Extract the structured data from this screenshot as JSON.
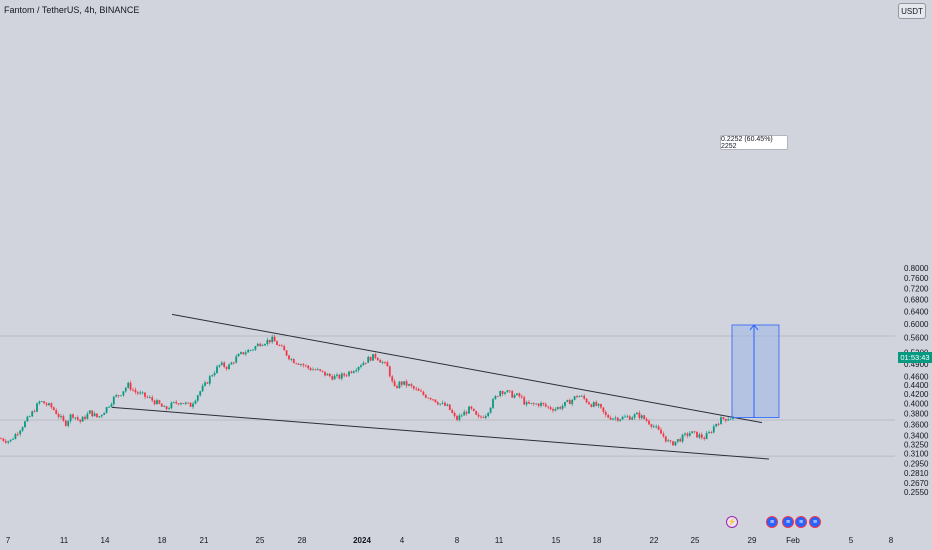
{
  "header": {
    "title": "Fantom / TetherUS, 4h, BINANCE",
    "currency": "USDT"
  },
  "last_price_tag": {
    "time": "01:53:43",
    "price": 0.37,
    "color": "#089981"
  },
  "measure": {
    "label": "0.2252 (60.45%) 2252",
    "from_price": 0.3725,
    "to_price": 0.5977
  },
  "colors": {
    "up": "#089981",
    "down": "#f23645",
    "line": "#2a2e39",
    "measure_fill": "#9db4e6",
    "measure_line": "#2962ff"
  },
  "events": [
    {
      "icon": "lightning-icon"
    },
    {
      "icon": "us-flag-icon"
    },
    {
      "icon": "us-flag-icon"
    },
    {
      "icon": "us-flag-icon"
    },
    {
      "icon": "us-flag-icon"
    }
  ],
  "chart_data": {
    "type": "candlestick",
    "title": "Fantom / TetherUS, 4h, BINANCE",
    "y_scale": "log",
    "ylim": [
      0.245,
      0.82
    ],
    "y_ticks": [
      "0.8000",
      "0.7600",
      "0.7200",
      "0.6800",
      "0.6400",
      "0.6000",
      "0.5600",
      "0.5200",
      "0.4900",
      "0.4600",
      "0.4400",
      "0.4200",
      "0.4000",
      "0.3800",
      "0.3600",
      "0.3400",
      "0.3250",
      "0.3100",
      "0.2950",
      "0.2810",
      "0.2670",
      "0.2550"
    ],
    "x_ticks": [
      "7",
      "11",
      "14",
      "18",
      "21",
      "25",
      "28",
      "2024",
      "4",
      "8",
      "11",
      "15",
      "18",
      "22",
      "25",
      "29",
      "Feb",
      "5",
      "8"
    ],
    "horizontal_lines": [
      0.565,
      0.368,
      0.306
    ],
    "close_path": [
      [
        0,
        0.335
      ],
      [
        10,
        0.33
      ],
      [
        20,
        0.352
      ],
      [
        30,
        0.375
      ],
      [
        40,
        0.405
      ],
      [
        45,
        0.4
      ],
      [
        52,
        0.392
      ],
      [
        58,
        0.378
      ],
      [
        65,
        0.36
      ],
      [
        72,
        0.38
      ],
      [
        80,
        0.365
      ],
      [
        90,
        0.383
      ],
      [
        98,
        0.372
      ],
      [
        106,
        0.39
      ],
      [
        114,
        0.412
      ],
      [
        120,
        0.42
      ],
      [
        128,
        0.44
      ],
      [
        135,
        0.425
      ],
      [
        142,
        0.418
      ],
      [
        150,
        0.41
      ],
      [
        158,
        0.4
      ],
      [
        165,
        0.388
      ],
      [
        172,
        0.398
      ],
      [
        180,
        0.405
      ],
      [
        190,
        0.395
      ],
      [
        198,
        0.42
      ],
      [
        205,
        0.44
      ],
      [
        212,
        0.465
      ],
      [
        220,
        0.488
      ],
      [
        228,
        0.482
      ],
      [
        236,
        0.505
      ],
      [
        244,
        0.52
      ],
      [
        252,
        0.528
      ],
      [
        260,
        0.545
      ],
      [
        266,
        0.55
      ],
      [
        272,
        0.555
      ],
      [
        278,
        0.54
      ],
      [
        285,
        0.52
      ],
      [
        292,
        0.5
      ],
      [
        300,
        0.492
      ],
      [
        308,
        0.48
      ],
      [
        316,
        0.475
      ],
      [
        322,
        0.468
      ],
      [
        330,
        0.46
      ],
      [
        338,
        0.457
      ],
      [
        346,
        0.465
      ],
      [
        354,
        0.478
      ],
      [
        362,
        0.492
      ],
      [
        370,
        0.505
      ],
      [
        376,
        0.51
      ],
      [
        382,
        0.495
      ],
      [
        388,
        0.48
      ],
      [
        394,
        0.43
      ],
      [
        400,
        0.445
      ],
      [
        408,
        0.44
      ],
      [
        416,
        0.428
      ],
      [
        424,
        0.418
      ],
      [
        432,
        0.412
      ],
      [
        440,
        0.4
      ],
      [
        448,
        0.393
      ],
      [
        456,
        0.368
      ],
      [
        462,
        0.378
      ],
      [
        470,
        0.39
      ],
      [
        478,
        0.37
      ],
      [
        486,
        0.38
      ],
      [
        494,
        0.408
      ],
      [
        500,
        0.428
      ],
      [
        506,
        0.425
      ],
      [
        512,
        0.418
      ],
      [
        520,
        0.415
      ],
      [
        526,
        0.398
      ],
      [
        532,
        0.398
      ],
      [
        540,
        0.4
      ],
      [
        548,
        0.392
      ],
      [
        556,
        0.39
      ],
      [
        564,
        0.397
      ],
      [
        572,
        0.408
      ],
      [
        578,
        0.418
      ],
      [
        584,
        0.41
      ],
      [
        590,
        0.4
      ],
      [
        598,
        0.395
      ],
      [
        606,
        0.375
      ],
      [
        614,
        0.372
      ],
      [
        622,
        0.372
      ],
      [
        630,
        0.374
      ],
      [
        638,
        0.378
      ],
      [
        646,
        0.368
      ],
      [
        652,
        0.36
      ],
      [
        658,
        0.348
      ],
      [
        664,
        0.338
      ],
      [
        670,
        0.325
      ],
      [
        676,
        0.33
      ],
      [
        682,
        0.336
      ],
      [
        690,
        0.345
      ],
      [
        698,
        0.34
      ],
      [
        704,
        0.336
      ],
      [
        710,
        0.345
      ],
      [
        716,
        0.362
      ],
      [
        722,
        0.37
      ],
      [
        728,
        0.372
      ],
      [
        734,
        0.373
      ]
    ],
    "trendlines": [
      {
        "x1": 172,
        "y1": 0.631,
        "x2": 762,
        "y2": 0.363
      },
      {
        "x1": 112,
        "y1": 0.3925,
        "x2": 769,
        "y2": 0.3015
      }
    ]
  }
}
